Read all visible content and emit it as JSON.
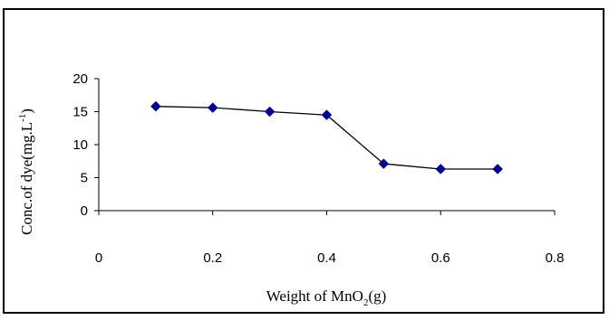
{
  "chart_data": {
    "type": "line",
    "xlabel_main": "Weight of MnO",
    "xlabel_sub": "2",
    "xlabel_tail": "(g)",
    "ylabel_main": "Conc.of dye(mg.L",
    "ylabel_sup": "-1",
    "ylabel_tail": ")",
    "xlim": [
      0,
      0.8
    ],
    "ylim": [
      0,
      20
    ],
    "xticks": [
      "0",
      "0.2",
      "0.4",
      "0.6",
      "0.8"
    ],
    "xtick_values": [
      0,
      0.2,
      0.4,
      0.6,
      0.8
    ],
    "yticks": [
      "0",
      "5",
      "10",
      "15",
      "20"
    ],
    "ytick_values": [
      0,
      5,
      10,
      15,
      20
    ],
    "series": [
      {
        "marker": "diamond",
        "color": "#00008B",
        "line_color": "#000000",
        "x": [
          0.1,
          0.2,
          0.3,
          0.4,
          0.5,
          0.6,
          0.7
        ],
        "y": [
          15.8,
          15.6,
          15.0,
          14.5,
          7.1,
          6.3,
          6.3
        ]
      }
    ],
    "grid": false,
    "legend": "none"
  }
}
